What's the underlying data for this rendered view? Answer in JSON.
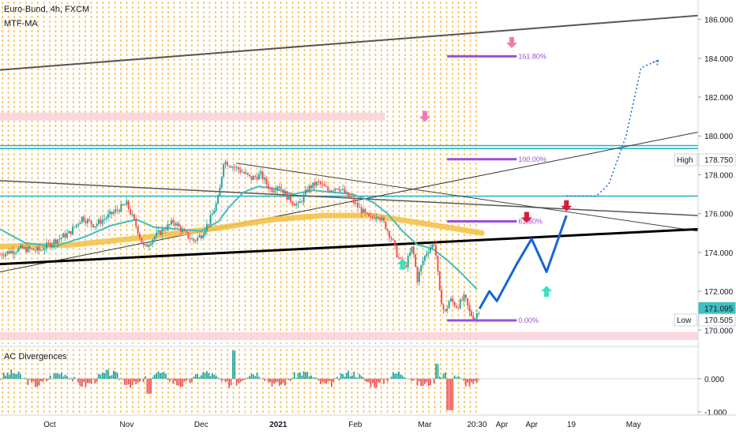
{
  "header": {
    "symbol": "Euro-Bund, 4h, FXCM",
    "indicator": "MTF-MA"
  },
  "colors": {
    "grid_dots": "#f5b83a",
    "candle_up": "#26a69a",
    "candle_down": "#ef5350",
    "ma_orange": "#f5c24a",
    "ma_teal": "#3fbfbf",
    "projection": "#1565d8",
    "fib": "#9c4fd6",
    "pink_zone": "#fbd3dc",
    "cyan_line": "#21b1c4"
  },
  "chart_data": [
    {
      "type": "line",
      "subtype": "candlestick",
      "title": "Euro-Bund, 4h, FXCM",
      "ylim": [
        169.2,
        187.0
      ],
      "y_ticks": [
        170,
        172,
        174,
        176,
        178,
        180,
        182,
        184,
        186
      ],
      "y_tick_labels": [
        "170.000",
        "172.000",
        "174.000",
        "176.000",
        "178.000",
        "180.000",
        "182.000",
        "184.000",
        "186.000"
      ],
      "x_ticks": [
        {
          "label": "Oct",
          "t": 20
        },
        {
          "label": "Nov",
          "t": 51
        },
        {
          "label": "Dec",
          "t": 81
        },
        {
          "label": "2021",
          "t": 112
        },
        {
          "label": "Feb",
          "t": 143
        },
        {
          "label": "Mar",
          "t": 171
        },
        {
          "label": "20:30",
          "t": 192
        },
        {
          "label": "Apr",
          "t": 202
        },
        {
          "label": "Apr",
          "t": 214
        },
        {
          "label": "19",
          "t": 230
        },
        {
          "label": "May",
          "t": 255
        }
      ],
      "xlim": [
        0,
        281
      ],
      "price_path": [
        [
          0,
          173.9
        ],
        [
          8,
          174.2
        ],
        [
          16,
          174.1
        ],
        [
          22,
          174.6
        ],
        [
          28,
          175.0
        ],
        [
          33,
          175.8
        ],
        [
          38,
          175.4
        ],
        [
          45,
          176.0
        ],
        [
          51,
          176.5
        ],
        [
          55,
          175.3
        ],
        [
          58,
          174.2
        ],
        [
          62,
          174.8
        ],
        [
          66,
          175.2
        ],
        [
          70,
          175.6
        ],
        [
          74,
          175.0
        ],
        [
          78,
          174.6
        ],
        [
          81,
          174.9
        ],
        [
          85,
          175.8
        ],
        [
          88,
          176.8
        ],
        [
          90,
          178.7
        ],
        [
          93,
          178.5
        ],
        [
          97,
          178.2
        ],
        [
          101,
          177.8
        ],
        [
          105,
          178.0
        ],
        [
          109,
          177.2
        ],
        [
          112,
          177.5
        ],
        [
          116,
          176.8
        ],
        [
          120,
          176.4
        ],
        [
          124,
          177.3
        ],
        [
          128,
          177.6
        ],
        [
          132,
          177.2
        ],
        [
          136,
          177.4
        ],
        [
          140,
          176.9
        ],
        [
          143,
          176.5
        ],
        [
          146,
          176.1
        ],
        [
          149,
          175.7
        ],
        [
          152,
          176.0
        ],
        [
          155,
          175.4
        ],
        [
          158,
          174.6
        ],
        [
          160,
          173.8
        ],
        [
          163,
          173.2
        ],
        [
          166,
          174.3
        ],
        [
          168,
          172.6
        ],
        [
          170,
          173.5
        ],
        [
          172,
          174.1
        ],
        [
          175,
          174.5
        ],
        [
          177,
          171.9
        ],
        [
          179,
          170.8
        ],
        [
          181,
          171.6
        ],
        [
          184,
          171.2
        ],
        [
          187,
          171.7
        ],
        [
          189,
          170.9
        ],
        [
          191,
          170.6
        ],
        [
          193,
          171.1
        ]
      ],
      "teal_ma": [
        [
          0,
          175.2
        ],
        [
          10,
          174.5
        ],
        [
          22,
          174.3
        ],
        [
          34,
          174.8
        ],
        [
          45,
          175.4
        ],
        [
          55,
          175.7
        ],
        [
          62,
          175.3
        ],
        [
          72,
          175.2
        ],
        [
          81,
          175.1
        ],
        [
          88,
          175.6
        ],
        [
          92,
          176.3
        ],
        [
          98,
          177.1
        ],
        [
          104,
          177.4
        ],
        [
          110,
          177.3
        ],
        [
          118,
          177.0
        ],
        [
          126,
          177.2
        ],
        [
          134,
          177.1
        ],
        [
          142,
          177.0
        ],
        [
          150,
          176.6
        ],
        [
          156,
          176.0
        ],
        [
          162,
          175.1
        ],
        [
          168,
          174.4
        ],
        [
          174,
          174.2
        ],
        [
          180,
          173.6
        ],
        [
          186,
          172.9
        ],
        [
          192,
          172.1
        ]
      ],
      "orange_ma": [
        [
          0,
          174.3
        ],
        [
          30,
          174.4
        ],
        [
          60,
          174.8
        ],
        [
          90,
          175.3
        ],
        [
          110,
          175.7
        ],
        [
          130,
          175.9
        ],
        [
          150,
          175.9
        ],
        [
          165,
          175.6
        ],
        [
          180,
          175.3
        ],
        [
          194,
          175.0
        ]
      ],
      "trendlines": [
        {
          "name": "upper-channel",
          "color": "#555555",
          "width": 2,
          "points": [
            [
              0,
              183.4
            ],
            [
              281,
              186.2
            ]
          ]
        },
        {
          "name": "rising-support",
          "color": "#333333",
          "width": 1,
          "points": [
            [
              0,
              173.0
            ],
            [
              281,
              180.2
            ]
          ]
        },
        {
          "name": "descending-resistance",
          "color": "#555555",
          "width": 1.5,
          "points": [
            [
              0,
              177.7
            ],
            [
              281,
              175.9
            ]
          ]
        },
        {
          "name": "descending-resistance-2",
          "color": "#444444",
          "width": 1,
          "points": [
            [
              95,
              178.6
            ],
            [
              281,
              175.1
            ]
          ]
        },
        {
          "name": "main-support",
          "color": "#000000",
          "width": 3,
          "points": [
            [
              0,
              173.4
            ],
            [
              281,
              175.2
            ]
          ]
        }
      ],
      "horizontal_lines": [
        {
          "name": "cyan-upper",
          "y": 179.5,
          "color": "#21b1c4"
        },
        {
          "name": "cyan-upper-2",
          "y": 179.35,
          "color": "#21b1c4"
        },
        {
          "name": "cyan-mid",
          "y": 176.9,
          "color": "#21b1c4"
        }
      ],
      "pink_zones": [
        {
          "y0": 180.8,
          "y1": 181.2,
          "t0": 0,
          "t1": 155
        },
        {
          "y0": 169.5,
          "y1": 169.9,
          "t0": 0,
          "t1": 281
        }
      ],
      "fib_levels": [
        {
          "label": "161.80%",
          "y": 184.1
        },
        {
          "label": "100.00%",
          "y": 178.8
        },
        {
          "label": "61.80%",
          "y": 175.6
        },
        {
          "label": "0.00%",
          "y": 170.5
        }
      ],
      "fib_t0": 180,
      "fib_t1": 208,
      "projection_path": [
        [
          193,
          171.1
        ],
        [
          197,
          172.0
        ],
        [
          200,
          171.5
        ],
        [
          208,
          173.4
        ],
        [
          214,
          174.7
        ],
        [
          220,
          173.0
        ],
        [
          228,
          175.9
        ]
      ],
      "projection_dotted": [
        [
          228,
          176.9
        ],
        [
          240,
          176.9
        ],
        [
          245,
          177.5
        ],
        [
          252,
          180.0
        ],
        [
          258,
          183.5
        ],
        [
          265,
          183.9
        ]
      ],
      "markers": [
        {
          "type": "down-arrow",
          "color": "#f07ab0",
          "t": 206,
          "y": 184.6
        },
        {
          "type": "down-arrow",
          "color": "#f07ab0",
          "t": 171,
          "y": 180.8
        },
        {
          "type": "down-arrow",
          "color": "#d81b3c",
          "t": 212,
          "y": 175.6
        },
        {
          "type": "down-arrow",
          "color": "#d81b3c",
          "t": 228,
          "y": 176.2
        },
        {
          "type": "up-arrow",
          "color": "#3ee0b8",
          "t": 162,
          "y": 173.6
        },
        {
          "type": "up-arrow",
          "color": "#3ee0b8",
          "t": 220,
          "y": 172.2
        }
      ],
      "price_labels": [
        {
          "label": "High",
          "value": "178.750",
          "y": 178.75,
          "style": "plain"
        },
        {
          "label": "",
          "value": "171.095",
          "y": 171.095,
          "style": "teal"
        },
        {
          "label": "Low",
          "value": "170.505",
          "y": 170.505,
          "style": "plain"
        }
      ]
    },
    {
      "type": "bar",
      "title": "AC Divergences",
      "ylim": [
        -1.05,
        0.95
      ],
      "y_ticks": [
        0.0,
        -1.0
      ],
      "y_tick_labels": [
        "0.000",
        "-1.000"
      ]
    }
  ]
}
